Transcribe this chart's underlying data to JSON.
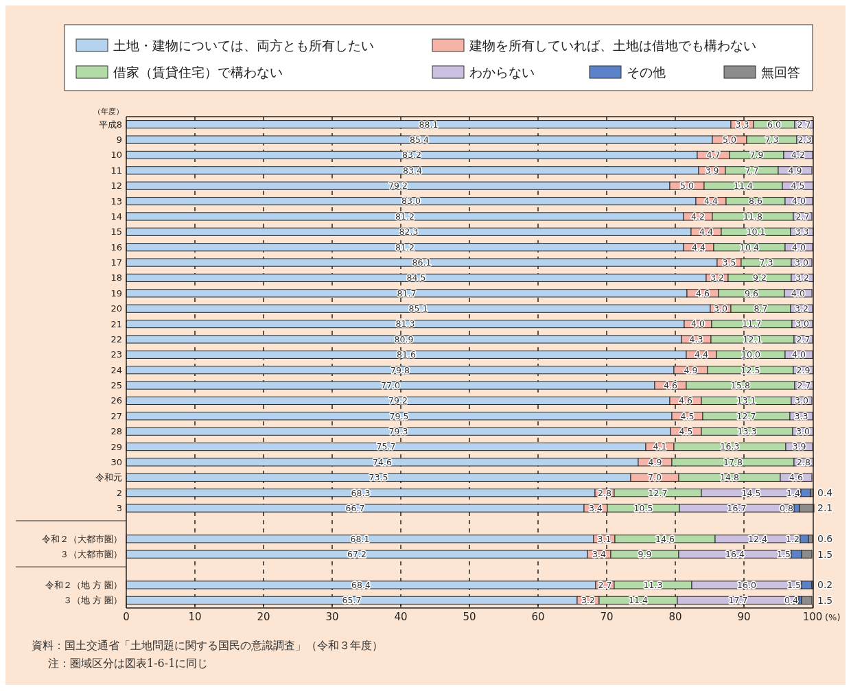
{
  "chart_data": {
    "type": "bar",
    "orientation": "horizontal",
    "stacked": true,
    "legend": "top",
    "grid": "x",
    "line_style": "dashed",
    "xlabel": "(%)",
    "ylabel": "（年度）",
    "xlim": [
      0,
      100.1
    ],
    "xticks": [
      0,
      10,
      20,
      30,
      40,
      50,
      60,
      70,
      80,
      90,
      100
    ],
    "categories": [
      "平成8",
      "9",
      "10",
      "11",
      "12",
      "13",
      "14",
      "15",
      "16",
      "17",
      "18",
      "19",
      "20",
      "21",
      "22",
      "23",
      "24",
      "25",
      "26",
      "27",
      "28",
      "29",
      "30",
      "令和元",
      "2",
      "3",
      null,
      "令和２（大都市圏）",
      "３（大都市圏）",
      null,
      "令和２（地 方 圏）",
      "３（地 方 圏）"
    ],
    "series": [
      {
        "name": "土地・建物については、両方とも所有したい",
        "color": "#b5d3ee",
        "values": [
          88.1,
          85.4,
          83.2,
          83.4,
          79.2,
          83.0,
          81.2,
          82.3,
          81.2,
          86.1,
          84.5,
          81.7,
          85.1,
          81.3,
          80.9,
          81.6,
          79.8,
          77.0,
          79.2,
          79.5,
          79.3,
          75.7,
          74.6,
          73.5,
          68.3,
          66.7,
          null,
          68.1,
          67.2,
          null,
          68.4,
          65.7
        ],
        "value_labels": [
          "88.1",
          "85.4",
          "83.2",
          "83.4",
          "79.2",
          "83.0",
          "81.2",
          "82.3",
          "81.2",
          "86.1",
          "84.5",
          "81.7",
          "85.1",
          "81.3",
          "80.9",
          "81.6",
          "79.8",
          "77.0",
          "79.2",
          "79.5",
          "79.3",
          "75.7",
          "74.6",
          "73.5",
          "68.3",
          "66.7",
          null,
          "68.1",
          "67.2",
          null,
          "68.4",
          "65.7"
        ]
      },
      {
        "name": "建物を所有していれば、土地は借地でも構わない",
        "color": "#f6b3a8",
        "values": [
          3.3,
          5.0,
          4.7,
          3.9,
          5.0,
          4.4,
          4.2,
          4.4,
          4.4,
          3.5,
          3.2,
          4.6,
          3.0,
          4.0,
          4.3,
          4.4,
          4.9,
          4.6,
          4.6,
          4.5,
          4.5,
          4.1,
          4.9,
          7.0,
          2.8,
          3.4,
          null,
          3.1,
          3.4,
          null,
          2.7,
          3.2
        ],
        "value_labels": [
          "3.3",
          "5.0",
          "4.7",
          "3.9",
          "5.0",
          "4.4",
          "4.2",
          "4.4",
          "4.4",
          "3.5",
          "3.2",
          "4.6",
          "3.0",
          "4.0",
          "4.3",
          "4.4",
          "4.9",
          "4.6",
          "4.6",
          "4.5",
          "4.5",
          "4.1",
          "4.9",
          "7.0",
          "2.8",
          "3.4",
          null,
          "3.1",
          "3.4",
          null,
          "2.7",
          "3.2"
        ]
      },
      {
        "name": "借家（賃貸住宅）で構わない",
        "color": "#b3dba7",
        "values": [
          6.0,
          7.3,
          7.9,
          7.7,
          11.4,
          8.6,
          11.8,
          10.1,
          10.4,
          7.3,
          9.2,
          9.6,
          8.7,
          11.7,
          12.1,
          10.0,
          12.5,
          15.8,
          13.1,
          12.7,
          13.3,
          16.3,
          17.8,
          14.8,
          12.7,
          10.5,
          null,
          14.6,
          9.9,
          null,
          11.3,
          11.4
        ],
        "value_labels": [
          "6.0",
          "7.3",
          "7.9",
          "7.7",
          "11.4",
          "8.6",
          "11.8",
          "10.1",
          "10.4",
          "7.3",
          "9.2",
          "9.6",
          "8.7",
          "11.7",
          "12.1",
          "10.0",
          "12.5",
          "15.8",
          "13.1",
          "12.7",
          "13.3",
          "16.3",
          "17.8",
          "14.8",
          "12.7",
          "10.5",
          null,
          "14.6",
          "9.9",
          null,
          "11.3",
          "11.4"
        ]
      },
      {
        "name": "わからない",
        "color": "#cbc0e0",
        "values": [
          2.7,
          2.3,
          4.2,
          4.9,
          4.5,
          4.0,
          2.7,
          3.3,
          4.0,
          3.0,
          3.2,
          4.0,
          3.2,
          3.0,
          2.7,
          4.0,
          2.9,
          2.7,
          3.0,
          3.3,
          3.0,
          3.9,
          2.8,
          4.6,
          14.5,
          16.7,
          null,
          12.4,
          16.4,
          null,
          16.0,
          17.7
        ],
        "value_labels": [
          "2.7",
          "2.3",
          "4.2",
          "4.9",
          "4.5",
          "4.0",
          "2.7",
          "3.3",
          "4.0",
          "3.0",
          "3.2",
          "4.0",
          "3.2",
          "3.0",
          "2.7",
          "4.0",
          "2.9",
          "2.7",
          "3.0",
          "3.3",
          "3.0",
          "3.9",
          "2.8",
          "4.6",
          "14.5",
          "16.7",
          null,
          "12.4",
          "16.4",
          null,
          "16.0",
          "17.7"
        ]
      },
      {
        "name": "その他",
        "color": "#5b82c9",
        "values": [
          null,
          null,
          null,
          null,
          null,
          null,
          null,
          null,
          null,
          null,
          null,
          null,
          null,
          null,
          null,
          null,
          null,
          null,
          null,
          null,
          null,
          null,
          null,
          null,
          1.4,
          0.8,
          null,
          1.2,
          1.5,
          null,
          1.5,
          0.4
        ],
        "value_labels": [
          null,
          null,
          null,
          null,
          null,
          null,
          null,
          null,
          null,
          null,
          null,
          null,
          null,
          null,
          null,
          null,
          null,
          null,
          null,
          null,
          null,
          null,
          null,
          null,
          "1.4",
          "0.8",
          null,
          "1.2",
          "1.5",
          null,
          "1.5",
          "0.4"
        ]
      },
      {
        "name": "無回答",
        "color": "#8c8c8c",
        "values": [
          null,
          null,
          null,
          null,
          null,
          null,
          null,
          null,
          null,
          null,
          null,
          null,
          null,
          null,
          null,
          null,
          null,
          null,
          null,
          null,
          null,
          null,
          null,
          null,
          0.4,
          2.1,
          null,
          0.6,
          1.5,
          null,
          0.2,
          1.5
        ],
        "value_labels": [
          null,
          null,
          null,
          null,
          null,
          null,
          null,
          null,
          null,
          null,
          null,
          null,
          null,
          null,
          null,
          null,
          null,
          null,
          null,
          null,
          null,
          null,
          null,
          null,
          "0.4",
          "2.1",
          null,
          "0.6",
          "1.5",
          null,
          "0.2",
          "1.5"
        ]
      }
    ],
    "annotations": [
      "資料：国土交通省「土地問題に関する国民の意識調査」（令和３年度）",
      "注：圏域区分は図表1-6-1に同じ"
    ]
  }
}
